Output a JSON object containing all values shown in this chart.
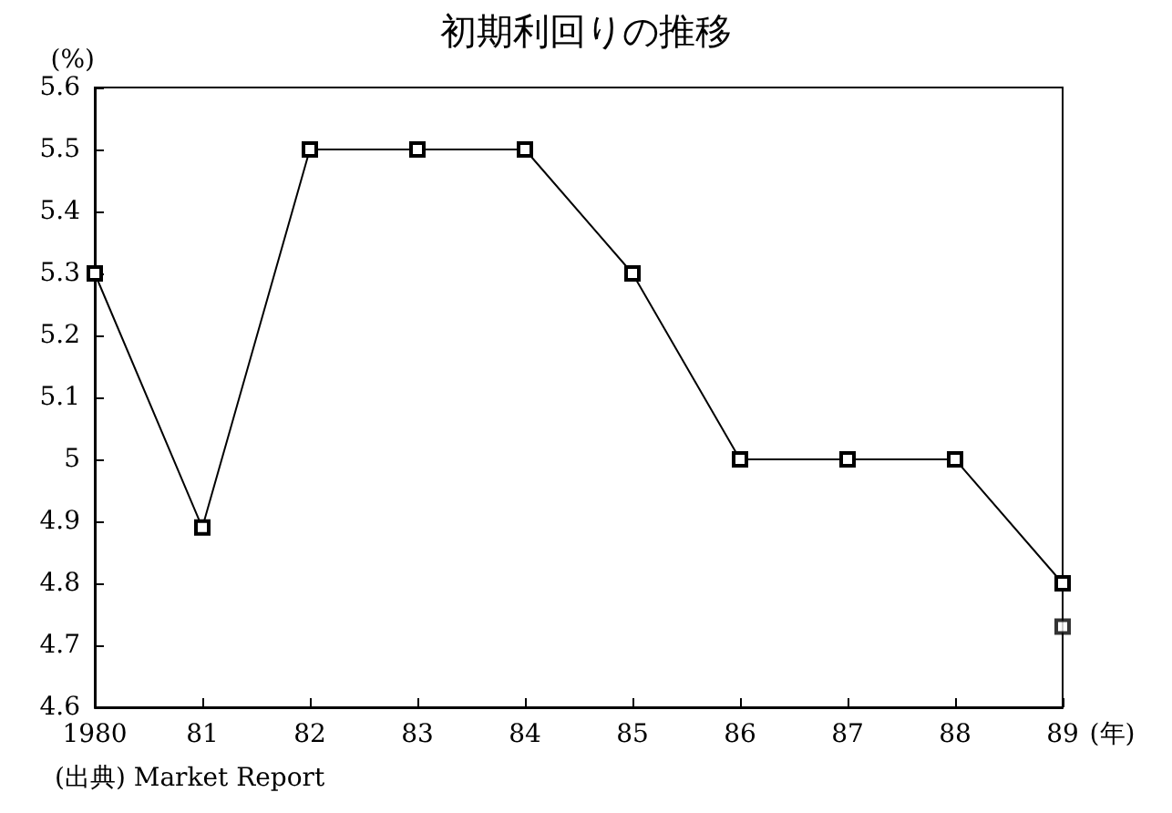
{
  "chart_data": {
    "type": "line",
    "title": "初期利回りの推移",
    "xlabel": "(年)",
    "ylabel": "(%)",
    "categories": [
      "1980",
      "81",
      "82",
      "83",
      "84",
      "85",
      "86",
      "87",
      "88",
      "89"
    ],
    "series": [
      {
        "color": "#000000",
        "values": [
          5.3,
          4.89,
          5.5,
          5.5,
          5.5,
          5.3,
          5.0,
          5.0,
          5.0,
          4.8
        ]
      },
      {
        "type": "scatter",
        "color": "#000000",
        "x": [
          "89"
        ],
        "values": [
          4.73
        ]
      }
    ],
    "ylim": [
      4.6,
      5.6
    ],
    "yticks": [
      4.6,
      4.7,
      4.8,
      4.9,
      5,
      5.1,
      5.2,
      5.3,
      5.4,
      5.5,
      5.6
    ],
    "marker": "square",
    "line_style": "solid",
    "grid": false,
    "annotations": [
      "(出典) Market Report"
    ]
  }
}
